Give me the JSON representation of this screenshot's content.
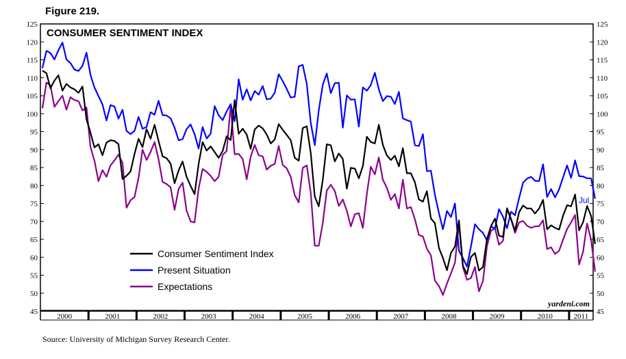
{
  "figure_label": "Figure 219.",
  "source": "Source: University of Michigan Survey Research Center.",
  "credit": "yardeni.com",
  "chart_data": {
    "type": "line",
    "title": "CONSUMER SENTIMENT INDEX",
    "ylim": [
      45,
      125
    ],
    "y_ticks": [
      45,
      50,
      55,
      60,
      65,
      70,
      75,
      80,
      85,
      90,
      95,
      100,
      105,
      110,
      115,
      120,
      125
    ],
    "x_range": [
      "2000-01",
      "2011-07"
    ],
    "year_labels": [
      "2000",
      "2001",
      "2002",
      "2003",
      "2004",
      "2005",
      "2006",
      "2007",
      "2008",
      "2009",
      "2010",
      "2011"
    ],
    "grid": false,
    "legend_position": "lower-left",
    "end_label": "Jul",
    "series": [
      {
        "name": "Consumer Sentiment Index",
        "color": "#000000",
        "values": [
          112.0,
          111.3,
          107.1,
          109.2,
          110.7,
          106.4,
          108.3,
          107.3,
          106.8,
          105.8,
          107.6,
          98.4,
          94.7,
          90.6,
          91.5,
          88.4,
          92.0,
          92.6,
          92.4,
          91.5,
          81.8,
          82.7,
          83.9,
          88.8,
          93.0,
          90.7,
          95.7,
          93.0,
          96.9,
          92.4,
          88.1,
          87.6,
          86.1,
          80.6,
          84.2,
          86.7,
          82.4,
          79.9,
          77.6,
          86.0,
          92.1,
          89.7,
          90.9,
          89.3,
          87.7,
          89.6,
          93.7,
          92.6,
          103.8,
          94.4,
          95.8,
          94.2,
          90.2,
          95.6,
          96.7,
          95.9,
          94.2,
          91.7,
          92.8,
          97.1,
          95.5,
          94.1,
          92.6,
          87.7,
          86.9,
          96.0,
          96.5,
          89.1,
          76.9,
          74.2,
          81.6,
          91.5,
          91.2,
          86.7,
          88.9,
          87.4,
          79.1,
          84.9,
          84.7,
          82.0,
          85.4,
          93.6,
          92.1,
          91.7,
          96.9,
          91.3,
          88.4,
          87.1,
          88.3,
          85.3,
          90.4,
          83.4,
          83.4,
          80.9,
          76.1,
          75.5,
          78.4,
          70.8,
          69.5,
          62.6,
          59.8,
          56.4,
          61.2,
          63.0,
          70.3,
          57.6,
          55.3,
          60.1,
          61.2,
          56.3,
          57.3,
          65.1,
          68.7,
          70.8,
          66.0,
          65.7,
          73.5,
          70.6,
          67.4,
          72.5,
          74.4,
          73.6,
          73.6,
          72.2,
          73.6,
          76.0,
          67.8,
          68.9,
          68.2,
          67.7,
          71.6,
          74.5,
          74.2,
          77.5,
          67.5,
          69.8,
          74.3,
          71.5,
          63.7
        ]
      },
      {
        "name": "Present Situation",
        "color": "#0000ff",
        "values": [
          112.7,
          117.5,
          116.9,
          115.1,
          117.7,
          119.8,
          115.1,
          114.1,
          112.3,
          111.9,
          113.3,
          117.0,
          110.8,
          107.3,
          104.9,
          102.6,
          98.1,
          102.4,
          102.0,
          98.6,
          101.1,
          95.2,
          94.3,
          95.2,
          99.1,
          95.8,
          96.3,
          100.4,
          99.7,
          103.6,
          99.6,
          99.5,
          98.7,
          96.1,
          92.6,
          92.9,
          95.7,
          97.0,
          94.3,
          90.3,
          96.3,
          93.1,
          94.4,
          102.1,
          99.6,
          98.2,
          100.6,
          102.7,
          97.9,
          109.6,
          103.9,
          106.8,
          103.7,
          106.3,
          105.3,
          107.7,
          104.0,
          104.2,
          105.8,
          111.0,
          109.1,
          106.9,
          104.5,
          104.7,
          113.2,
          113.6,
          108.3,
          97.5,
          91.2,
          100.9,
          108.1,
          111.2,
          105.7,
          108.5,
          108.6,
          96.1,
          105.1,
          103.9,
          104.0,
          96.4,
          107.3,
          106.4,
          108.0,
          111.4,
          106.8,
          103.5,
          104.9,
          104.7,
          102.7,
          106.1,
          98.7,
          98.2,
          97.8,
          91.2,
          91.0,
          94.3,
          84.0,
          84.1,
          77.4,
          72.3,
          67.8,
          72.9,
          71.2,
          75.0,
          61.8,
          59.8,
          57.4,
          63.0,
          69.2,
          67.8,
          66.8,
          64.7,
          68.6,
          68.0,
          73.4,
          71.3,
          68.1,
          72.7,
          71.7,
          76.4,
          80.8,
          81.9,
          82.4,
          81.3,
          81.2,
          85.9,
          76.8,
          79.0,
          76.7,
          78.9,
          82.3,
          85.6,
          82.1,
          87.0,
          82.6,
          82.5,
          82.0,
          82.0,
          76.3
        ]
      },
      {
        "name": "Expectations",
        "color": "#8b008b",
        "values": [
          101.5,
          108.7,
          107.9,
          101.9,
          103.5,
          105.0,
          101.1,
          104.6,
          103.8,
          103.5,
          100.9,
          101.7,
          90.7,
          86.9,
          81.2,
          84.3,
          82.4,
          85.6,
          87.0,
          88.6,
          86.3,
          73.8,
          75.9,
          76.8,
          82.1,
          90.0,
          87.1,
          89.3,
          92.1,
          87.3,
          81.0,
          80.4,
          79.5,
          73.2,
          79.0,
          80.8,
          73.0,
          70.0,
          69.7,
          79.1,
          84.6,
          83.8,
          82.7,
          81.2,
          82.4,
          88.5,
          89.6,
          102.2,
          88.7,
          88.8,
          87.4,
          81.7,
          88.0,
          91.3,
          88.4,
          88.1,
          84.4,
          85.5,
          86.0,
          91.0,
          85.7,
          84.8,
          82.4,
          77.3,
          75.3,
          84.9,
          85.6,
          78.0,
          63.2,
          63.2,
          69.6,
          78.6,
          80.2,
          78.5,
          74.3,
          76.1,
          73.0,
          68.6,
          72.0,
          72.3,
          68.2,
          77.6,
          85.2,
          83.1,
          87.8,
          81.6,
          79.4,
          76.0,
          77.6,
          73.6,
          81.6,
          73.6,
          74.0,
          70.6,
          66.2,
          65.8,
          62.4,
          60.5,
          53.5,
          52.0,
          49.5,
          52.7,
          55.5,
          58.5,
          69.4,
          57.3,
          53.7,
          54.2,
          57.3,
          50.5,
          53.4,
          63.1,
          67.4,
          68.1,
          63.5,
          64.6,
          73.7,
          70.8,
          66.8,
          69.7,
          70.1,
          68.8,
          68.2,
          68.6,
          68.7,
          70.3,
          62.3,
          62.8,
          60.9,
          61.8,
          64.9,
          67.9,
          69.7,
          71.8,
          58.0,
          61.6,
          69.4,
          64.8,
          56.0
        ]
      }
    ]
  }
}
